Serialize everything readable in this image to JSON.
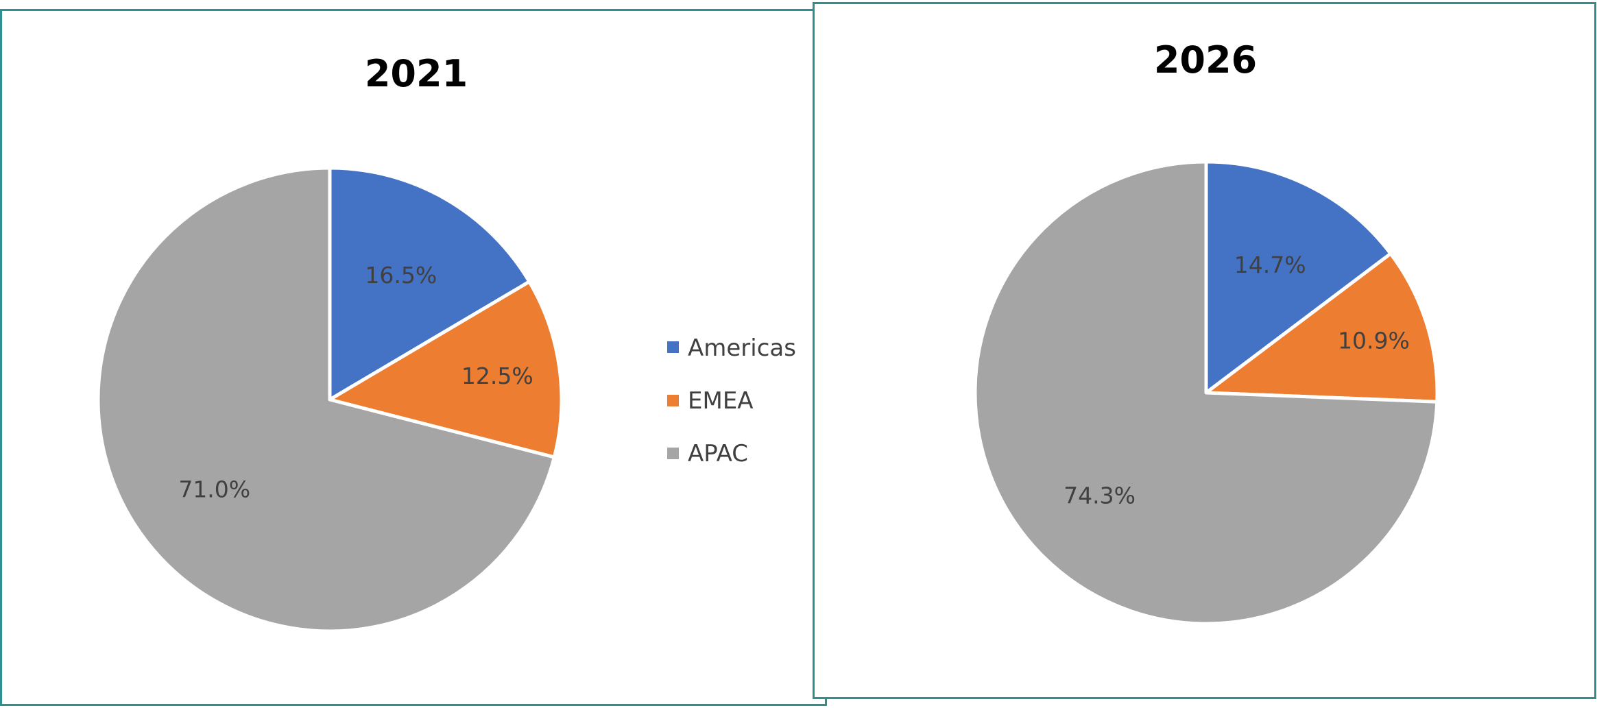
{
  "chart_data": [
    {
      "type": "pie",
      "title": "2021",
      "categories": [
        "Americas",
        "EMEA",
        "APAC"
      ],
      "values": [
        16.5,
        12.5,
        71.0
      ],
      "data_labels": [
        "16.5%",
        "12.5%",
        "71.0%"
      ],
      "colors": [
        "#4472c4",
        "#ed7d31",
        "#a5a5a5"
      ],
      "legend": {
        "position": "right",
        "entries": [
          "Americas",
          "EMEA",
          "APAC"
        ]
      }
    },
    {
      "type": "pie",
      "title": "2026",
      "categories": [
        "Americas",
        "EMEA",
        "APAC"
      ],
      "values": [
        14.7,
        10.9,
        74.3
      ],
      "data_labels": [
        "14.7%",
        "10.9%",
        "74.3%"
      ],
      "colors": [
        "#4472c4",
        "#ed7d31",
        "#a5a5a5"
      ]
    }
  ]
}
